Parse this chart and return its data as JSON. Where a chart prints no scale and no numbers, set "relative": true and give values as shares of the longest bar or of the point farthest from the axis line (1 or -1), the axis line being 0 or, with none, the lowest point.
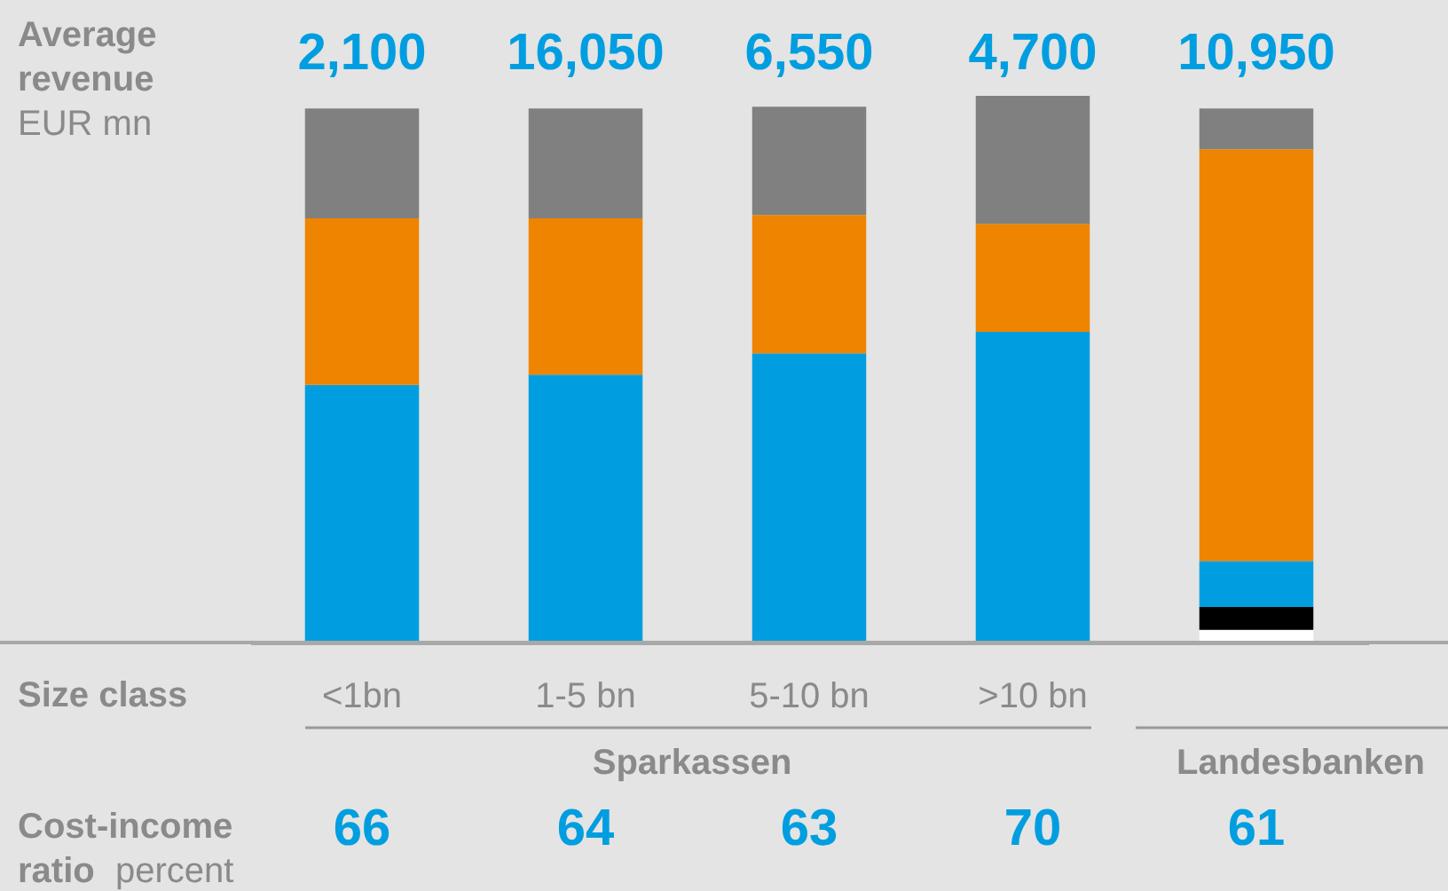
{
  "chart_data": {
    "type": "bar",
    "stacked": true,
    "relative": true,
    "ylabel": "Average revenue EUR mn",
    "xlabel": "Size class",
    "categories": [
      "<1bn",
      "1-5 bn",
      "5-10 bn",
      ">10 bn",
      null
    ],
    "series": [
      {
        "color": "#ffffff",
        "values": [
          null,
          null,
          null,
          null,
          0.023
        ]
      },
      {
        "color": "#000000",
        "values": [
          null,
          null,
          null,
          null,
          0.042
        ]
      },
      {
        "color": "#009ee0",
        "values": [
          0.471,
          0.49,
          0.529,
          0.568,
          0.084
        ]
      },
      {
        "color": "#ee8400",
        "values": [
          0.305,
          0.286,
          0.253,
          0.198,
          0.753
        ]
      },
      {
        "color": "#808080",
        "values": [
          0.201,
          0.201,
          0.198,
          0.234,
          0.075
        ]
      }
    ],
    "annotations": [
      "2,100",
      "16,050",
      "6,550",
      "4,700",
      "10,950",
      "Sparkassen",
      "Landesbanken",
      "Cost-income ratio percent",
      "66",
      "64",
      "63",
      "70",
      "61"
    ]
  }
}
